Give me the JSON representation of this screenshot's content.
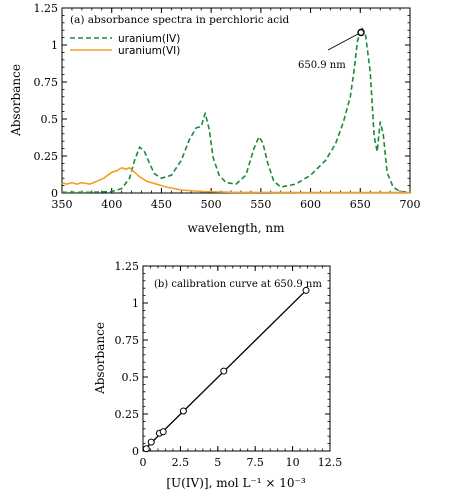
{
  "chart_data": [
    {
      "type": "line",
      "annotation_title": "(a) absorbance spectra in perchloric acid",
      "xlabel": "wavelength, nm",
      "ylabel": "Absorbance",
      "xlim": [
        350,
        700
      ],
      "ylim": [
        0,
        1.25
      ],
      "x_ticks": [
        "350",
        "400",
        "450",
        "500",
        "550",
        "600",
        "650",
        "700"
      ],
      "y_ticks": [
        "0",
        "0.25",
        "0.5",
        "0.75",
        "1",
        "1.25"
      ],
      "legend_position": "top-left",
      "series": [
        {
          "name": "uranium(IV)",
          "color": "#1a8a3a",
          "style": "dashed",
          "points": [
            [
              350,
              0.005
            ],
            [
              380,
              0.005
            ],
            [
              400,
              0.01
            ],
            [
              410,
              0.03
            ],
            [
              418,
              0.1
            ],
            [
              423,
              0.22
            ],
            [
              428,
              0.31
            ],
            [
              433,
              0.28
            ],
            [
              438,
              0.2
            ],
            [
              443,
              0.13
            ],
            [
              450,
              0.1
            ],
            [
              460,
              0.12
            ],
            [
              470,
              0.22
            ],
            [
              478,
              0.36
            ],
            [
              485,
              0.44
            ],
            [
              490,
              0.45
            ],
            [
              494,
              0.54
            ],
            [
              498,
              0.43
            ],
            [
              502,
              0.24
            ],
            [
              508,
              0.12
            ],
            [
              515,
              0.07
            ],
            [
              525,
              0.06
            ],
            [
              535,
              0.12
            ],
            [
              543,
              0.3
            ],
            [
              548,
              0.38
            ],
            [
              552,
              0.34
            ],
            [
              557,
              0.2
            ],
            [
              563,
              0.08
            ],
            [
              570,
              0.04
            ],
            [
              585,
              0.06
            ],
            [
              600,
              0.12
            ],
            [
              615,
              0.22
            ],
            [
              625,
              0.33
            ],
            [
              633,
              0.48
            ],
            [
              640,
              0.65
            ],
            [
              644,
              0.84
            ],
            [
              647,
              1.02
            ],
            [
              650.9,
              1.12
            ],
            [
              655,
              1.08
            ],
            [
              660,
              0.82
            ],
            [
              664,
              0.38
            ],
            [
              667,
              0.28
            ],
            [
              670,
              0.48
            ],
            [
              673,
              0.4
            ],
            [
              677,
              0.14
            ],
            [
              683,
              0.04
            ],
            [
              690,
              0.01
            ],
            [
              700,
              0.005
            ]
          ]
        },
        {
          "name": "uranium(VI)",
          "color": "#f0a020",
          "style": "solid",
          "points": [
            [
              350,
              0.07
            ],
            [
              355,
              0.06
            ],
            [
              360,
              0.07
            ],
            [
              365,
              0.06
            ],
            [
              370,
              0.07
            ],
            [
              378,
              0.06
            ],
            [
              385,
              0.08
            ],
            [
              392,
              0.1
            ],
            [
              400,
              0.14
            ],
            [
              405,
              0.15
            ],
            [
              410,
              0.17
            ],
            [
              414,
              0.16
            ],
            [
              418,
              0.17
            ],
            [
              423,
              0.14
            ],
            [
              428,
              0.11
            ],
            [
              435,
              0.08
            ],
            [
              445,
              0.06
            ],
            [
              455,
              0.04
            ],
            [
              470,
              0.02
            ],
            [
              490,
              0.01
            ],
            [
              520,
              0.005
            ],
            [
              600,
              0.003
            ],
            [
              700,
              0.003
            ]
          ]
        }
      ],
      "annotations": [
        {
          "text": "650.9 nm",
          "x": 650.9,
          "y": 1.085
        }
      ]
    },
    {
      "type": "scatter",
      "annotation_title": "(b) calibration curve at 650.9 nm",
      "xlabel": "[U(IV)], mol L⁻¹ × 10⁻³",
      "ylabel": "Absorbance",
      "xlim": [
        0,
        12.5
      ],
      "ylim": [
        0,
        1.25
      ],
      "x_ticks": [
        "0",
        "2.5",
        "5",
        "7.5",
        "10",
        "12.5"
      ],
      "y_ticks": [
        "0",
        "0.25",
        "0.5",
        "0.75",
        "1",
        "1.25"
      ],
      "x": [
        0.22,
        0.55,
        1.1,
        1.35,
        2.7,
        5.4,
        10.9
      ],
      "y": [
        0.015,
        0.06,
        0.12,
        0.13,
        0.27,
        0.54,
        1.085
      ],
      "fit_line": [
        [
          0,
          0
        ],
        [
          10.9,
          1.085
        ]
      ]
    }
  ]
}
